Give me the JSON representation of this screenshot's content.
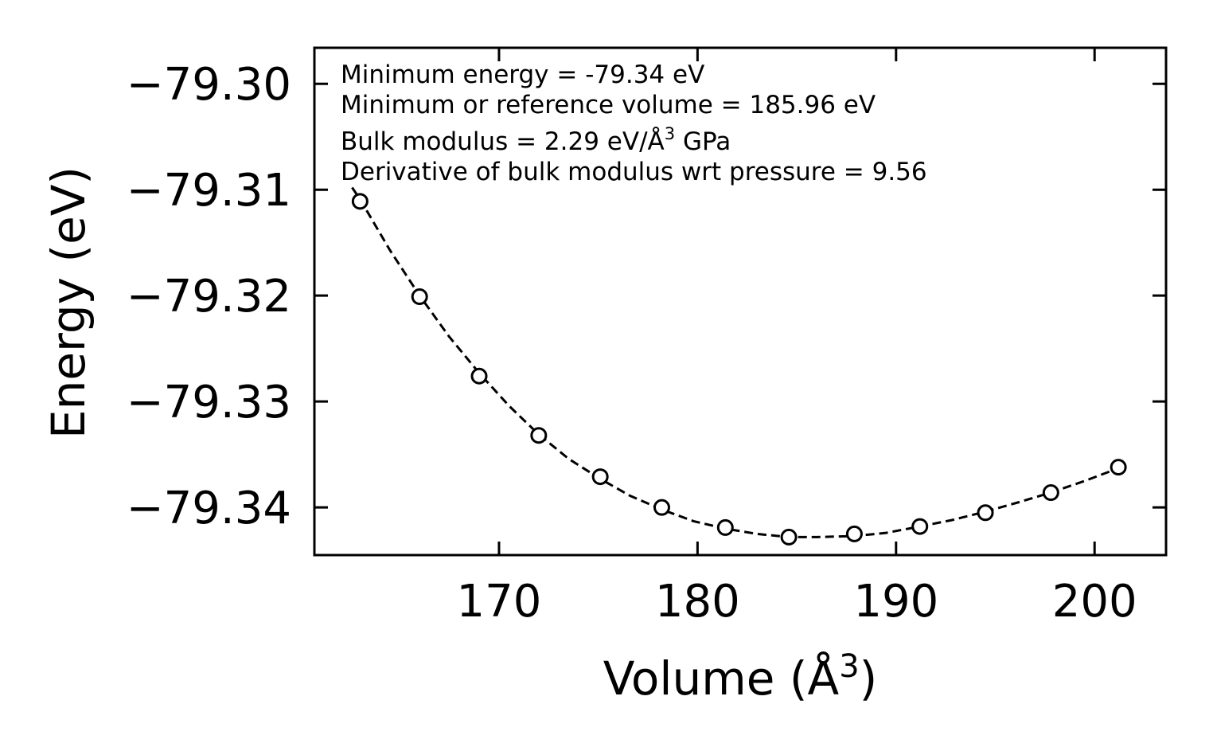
{
  "chart_data": {
    "type": "scatter",
    "title": "",
    "xlabel": "Volume (Å",
    "xlabel_sup": "3",
    "xlabel_close": ")",
    "ylabel": "Energy (eV)",
    "xlim": [
      160.7,
      203.6
    ],
    "ylim": [
      -79.3445,
      -79.2966
    ],
    "xticks": [
      170,
      180,
      190,
      200
    ],
    "xtick_labels": [
      "170",
      "180",
      "190",
      "200"
    ],
    "yticks": [
      -79.3,
      -79.31,
      -79.32,
      -79.33,
      -79.34
    ],
    "ytick_labels": [
      "−79.30",
      "−79.31",
      "−79.32",
      "−79.33",
      "−79.34"
    ],
    "series": [
      {
        "name": "data",
        "style": "open-circle",
        "x": [
          163.0,
          166.0,
          169.0,
          172.0,
          175.1,
          178.2,
          181.4,
          184.6,
          187.9,
          191.2,
          194.5,
          197.8,
          201.2
        ],
        "y": [
          -79.3111,
          -79.3201,
          -79.3276,
          -79.3332,
          -79.3371,
          -79.34,
          -79.3419,
          -79.3428,
          -79.3425,
          -79.3418,
          -79.3405,
          -79.3386,
          -79.3362
        ]
      },
      {
        "name": "fit",
        "style": "dashed-line",
        "x": [
          162.6,
          163.0,
          164.5,
          166.0,
          167.5,
          169.0,
          170.5,
          172.0,
          173.5,
          175.1,
          176.6,
          178.2,
          179.8,
          181.4,
          183.0,
          184.6,
          186.0,
          187.9,
          189.5,
          191.2,
          192.8,
          194.5,
          196.2,
          197.8,
          199.5,
          201.2
        ],
        "y": [
          -79.3098,
          -79.3109,
          -79.3157,
          -79.32,
          -79.3239,
          -79.3273,
          -79.3304,
          -79.3331,
          -79.3354,
          -79.3373,
          -79.3389,
          -79.3402,
          -79.3413,
          -79.342,
          -79.3425,
          -79.3428,
          -79.3428,
          -79.3427,
          -79.3424,
          -79.3418,
          -79.3412,
          -79.3404,
          -79.3395,
          -79.3386,
          -79.3375,
          -79.3363
        ]
      }
    ],
    "annotations": [
      "Minimum energy = -79.34 eV",
      "Minimum or reference volume = 185.96 eV"
    ],
    "annotation_bulk": {
      "prefix": "Bulk modulus = 2.29 eV/Å",
      "sup": "3",
      "suffix": " GPa"
    },
    "annotation_deriv": "Derivative of bulk modulus wrt pressure = 9.56",
    "colors": {
      "data": "#000000",
      "axes": "#000000",
      "background": "#ffffff"
    }
  }
}
